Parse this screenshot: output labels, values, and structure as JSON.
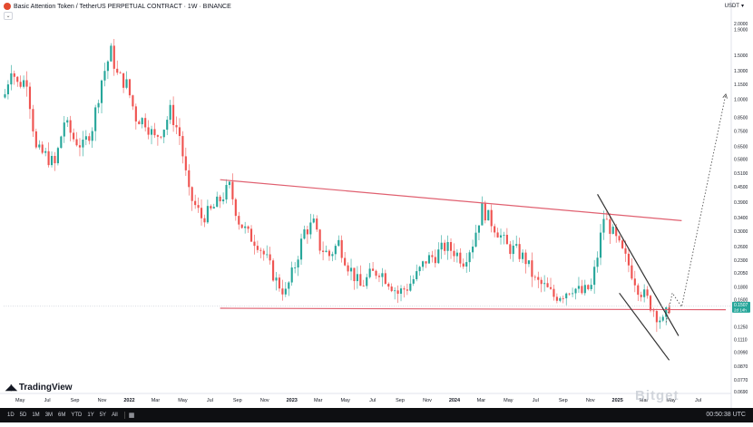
{
  "header": {
    "title": "Basic Attention Token / TetherUS PERPETUAL CONTRACT · 1W · BINANCE",
    "currency": "USDT"
  },
  "colors": {
    "up": "#26a69a",
    "down": "#ef5350",
    "trendline": "#e06070",
    "channel": "#333333",
    "projection": "#555555",
    "price_badge": "#26a69a"
  },
  "bottombar": {
    "timeframes": [
      "1D",
      "5D",
      "1M",
      "3M",
      "6M",
      "YTD",
      "1Y",
      "5Y",
      "All"
    ],
    "clock": "00:50:38 UTC"
  },
  "branding": {
    "logo_text": "TradingView",
    "watermark": "Bitget"
  },
  "chart_data": {
    "type": "candlestick",
    "title": "Basic Attention Token / TetherUS PERPETUAL CONTRACT · 1W · BINANCE",
    "y_scale": "log",
    "ylim": [
      0.069,
      2.25
    ],
    "y_ticks": [
      "2.0000",
      "1.9000",
      "1.5000",
      "1.3000",
      "1.1500",
      "1.0000",
      "0.8500",
      "0.7500",
      "0.6500",
      "0.5800",
      "0.5100",
      "0.4500",
      "0.3900",
      "0.3400",
      "0.3000",
      "0.2600",
      "0.2300",
      "0.2050",
      "0.1800",
      "0.1600",
      "0.1250",
      "0.1110",
      "0.0990",
      "0.0870",
      "0.0770",
      "0.0690"
    ],
    "x_range": [
      "2021-03-25",
      "2025-09-01"
    ],
    "x_ticks": [
      {
        "label": "May",
        "date": "2021-05-01"
      },
      {
        "label": "Jul",
        "date": "2021-07-01"
      },
      {
        "label": "Sep",
        "date": "2021-09-01"
      },
      {
        "label": "Nov",
        "date": "2021-11-01"
      },
      {
        "label": "2022",
        "date": "2022-01-01"
      },
      {
        "label": "Mar",
        "date": "2022-03-01"
      },
      {
        "label": "May",
        "date": "2022-05-01"
      },
      {
        "label": "Jul",
        "date": "2022-07-01"
      },
      {
        "label": "Sep",
        "date": "2022-09-01"
      },
      {
        "label": "Nov",
        "date": "2022-11-01"
      },
      {
        "label": "2023",
        "date": "2023-01-01"
      },
      {
        "label": "Mar",
        "date": "2023-03-01"
      },
      {
        "label": "May",
        "date": "2023-05-01"
      },
      {
        "label": "Jul",
        "date": "2023-07-01"
      },
      {
        "label": "Sep",
        "date": "2023-09-01"
      },
      {
        "label": "Nov",
        "date": "2023-11-01"
      },
      {
        "label": "2024",
        "date": "2024-01-01"
      },
      {
        "label": "Mar",
        "date": "2024-03-01"
      },
      {
        "label": "May",
        "date": "2024-05-01"
      },
      {
        "label": "Jul",
        "date": "2024-07-01"
      },
      {
        "label": "Sep",
        "date": "2024-09-01"
      },
      {
        "label": "Nov",
        "date": "2024-11-01"
      },
      {
        "label": "2025",
        "date": "2025-01-01"
      },
      {
        "label": "Mar",
        "date": "2025-03-01"
      },
      {
        "label": "May",
        "date": "2025-05-01"
      },
      {
        "label": "Jul",
        "date": "2025-07-01"
      }
    ],
    "current_price": {
      "value": "0.1507",
      "countdown": "2d 14h"
    },
    "price_keypoints": [
      {
        "date": "2021-03-28",
        "price": 1.05
      },
      {
        "date": "2021-04-11",
        "price": 1.35
      },
      {
        "date": "2021-04-25",
        "price": 1.15
      },
      {
        "date": "2021-05-16",
        "price": 1.2
      },
      {
        "date": "2021-06-06",
        "price": 0.63
      },
      {
        "date": "2021-06-27",
        "price": 0.6
      },
      {
        "date": "2021-07-18",
        "price": 0.55
      },
      {
        "date": "2021-08-08",
        "price": 0.82
      },
      {
        "date": "2021-08-29",
        "price": 0.7
      },
      {
        "date": "2021-09-19",
        "price": 0.65
      },
      {
        "date": "2021-10-10",
        "price": 0.78
      },
      {
        "date": "2021-10-31",
        "price": 1.2
      },
      {
        "date": "2021-11-21",
        "price": 1.55
      },
      {
        "date": "2021-12-05",
        "price": 1.25
      },
      {
        "date": "2021-12-26",
        "price": 1.15
      },
      {
        "date": "2022-01-16",
        "price": 0.85
      },
      {
        "date": "2022-02-06",
        "price": 0.82
      },
      {
        "date": "2022-02-27",
        "price": 0.7
      },
      {
        "date": "2022-03-20",
        "price": 0.78
      },
      {
        "date": "2022-04-03",
        "price": 0.9
      },
      {
        "date": "2022-04-24",
        "price": 0.72
      },
      {
        "date": "2022-05-15",
        "price": 0.42
      },
      {
        "date": "2022-06-12",
        "price": 0.34
      },
      {
        "date": "2022-07-03",
        "price": 0.36
      },
      {
        "date": "2022-07-24",
        "price": 0.4
      },
      {
        "date": "2022-08-14",
        "price": 0.45
      },
      {
        "date": "2022-09-04",
        "price": 0.33
      },
      {
        "date": "2022-09-25",
        "price": 0.29
      },
      {
        "date": "2022-10-16",
        "price": 0.27
      },
      {
        "date": "2022-11-06",
        "price": 0.23
      },
      {
        "date": "2022-11-27",
        "price": 0.19
      },
      {
        "date": "2022-12-18",
        "price": 0.17
      },
      {
        "date": "2023-01-08",
        "price": 0.22
      },
      {
        "date": "2023-01-29",
        "price": 0.3
      },
      {
        "date": "2023-02-19",
        "price": 0.32
      },
      {
        "date": "2023-03-05",
        "price": 0.26
      },
      {
        "date": "2023-03-26",
        "price": 0.24
      },
      {
        "date": "2023-04-16",
        "price": 0.27
      },
      {
        "date": "2023-05-07",
        "price": 0.22
      },
      {
        "date": "2023-06-04",
        "price": 0.18
      },
      {
        "date": "2023-06-25",
        "price": 0.2
      },
      {
        "date": "2023-07-16",
        "price": 0.21
      },
      {
        "date": "2023-08-06",
        "price": 0.19
      },
      {
        "date": "2023-08-27",
        "price": 0.17
      },
      {
        "date": "2023-09-17",
        "price": 0.18
      },
      {
        "date": "2023-10-08",
        "price": 0.2
      },
      {
        "date": "2023-10-29",
        "price": 0.23
      },
      {
        "date": "2023-11-19",
        "price": 0.24
      },
      {
        "date": "2023-12-10",
        "price": 0.26
      },
      {
        "date": "2023-12-31",
        "price": 0.25
      },
      {
        "date": "2024-01-21",
        "price": 0.23
      },
      {
        "date": "2024-02-11",
        "price": 0.27
      },
      {
        "date": "2024-03-03",
        "price": 0.37
      },
      {
        "date": "2024-03-17",
        "price": 0.34
      },
      {
        "date": "2024-04-07",
        "price": 0.3
      },
      {
        "date": "2024-04-28",
        "price": 0.26
      },
      {
        "date": "2024-05-19",
        "price": 0.25
      },
      {
        "date": "2024-06-09",
        "price": 0.23
      },
      {
        "date": "2024-06-30",
        "price": 0.19
      },
      {
        "date": "2024-07-21",
        "price": 0.18
      },
      {
        "date": "2024-08-11",
        "price": 0.165
      },
      {
        "date": "2024-09-01",
        "price": 0.17
      },
      {
        "date": "2024-09-22",
        "price": 0.18
      },
      {
        "date": "2024-10-13",
        "price": 0.17
      },
      {
        "date": "2024-11-03",
        "price": 0.18
      },
      {
        "date": "2024-11-17",
        "price": 0.24
      },
      {
        "date": "2024-12-01",
        "price": 0.34
      },
      {
        "date": "2024-12-15",
        "price": 0.31
      },
      {
        "date": "2025-01-05",
        "price": 0.26
      },
      {
        "date": "2025-01-26",
        "price": 0.22
      },
      {
        "date": "2025-02-16",
        "price": 0.18
      },
      {
        "date": "2025-03-09",
        "price": 0.16
      },
      {
        "date": "2025-03-30",
        "price": 0.14
      },
      {
        "date": "2025-04-13",
        "price": 0.13
      },
      {
        "date": "2025-04-27",
        "price": 0.1507
      }
    ],
    "annotations": [
      {
        "type": "trendline",
        "color": "#e06070",
        "from": {
          "date": "2022-07-24",
          "price": 0.48
        },
        "to": {
          "date": "2025-05-25",
          "price": 0.33
        }
      },
      {
        "type": "trendline",
        "color": "#e06070",
        "from": {
          "date": "2022-07-24",
          "price": 0.148
        },
        "to": {
          "date": "2025-09-01",
          "price": 0.146
        }
      },
      {
        "type": "trendline",
        "color": "#333333",
        "from": {
          "date": "2024-11-17",
          "price": 0.42
        },
        "to": {
          "date": "2025-05-18",
          "price": 0.115
        }
      },
      {
        "type": "trendline",
        "color": "#333333",
        "from": {
          "date": "2025-01-05",
          "price": 0.17
        },
        "to": {
          "date": "2025-04-27",
          "price": 0.092
        }
      },
      {
        "type": "projection",
        "color": "#555555",
        "style": "dotted",
        "points": [
          {
            "date": "2025-04-20",
            "price": 0.13
          },
          {
            "date": "2025-05-04",
            "price": 0.17
          },
          {
            "date": "2025-05-25",
            "price": 0.15
          },
          {
            "date": "2025-09-01",
            "price": 1.05
          }
        ]
      }
    ]
  }
}
